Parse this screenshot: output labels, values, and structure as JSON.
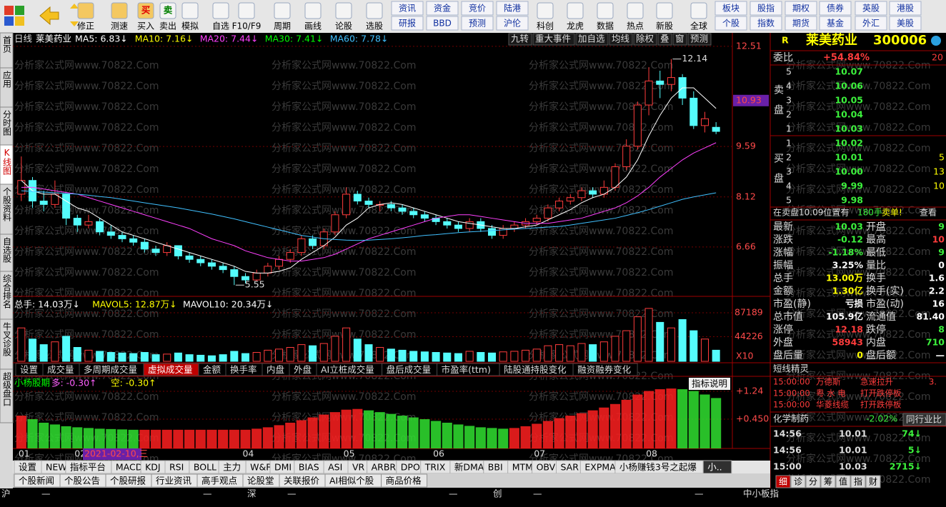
{
  "toolbar": {
    "singles": [
      "修正",
      "测速",
      "买入",
      "卖出",
      "模拟",
      "自选",
      "F10/F9",
      "周期",
      "画线",
      "论股",
      "选股",
      "科创",
      "龙虎",
      "数据",
      "热点",
      "新股",
      "全球"
    ],
    "pairs": [
      [
        "资讯",
        "研报"
      ],
      [
        "资金",
        "BBD"
      ],
      [
        "竞价",
        "预测"
      ],
      [
        "陆港",
        "沪伦"
      ],
      [
        "板块",
        "个股"
      ],
      [
        "股指",
        "指数"
      ],
      [
        "期权",
        "期货"
      ],
      [
        "债券",
        "基金"
      ],
      [
        "英股",
        "外汇"
      ],
      [
        "港股",
        "美股"
      ]
    ],
    "icon_glyphs": [
      "买",
      "卖"
    ]
  },
  "left_tabs": [
    "首页",
    "应用",
    "分时图",
    "K线图",
    "个股资料",
    "自选股",
    "综合排名",
    "牛叉诊股",
    "超级盘口"
  ],
  "watermark": "分析家公式网www.70822.Com",
  "chart_header": {
    "period": "日线",
    "name": "莱美药业",
    "mas": [
      "MA5: 6.83↓",
      "MA10: 7.16↓",
      "MA20: 7.44↓",
      "MA30: 7.41↓",
      "MA60: 7.78↓"
    ],
    "ma_colors": [
      "#ffffff",
      "#ffff00",
      "#ff40ff",
      "#00ff00",
      "#40c0ff"
    ]
  },
  "chart_buttons": [
    "九转",
    "重大事件",
    "加自选",
    "均线",
    "除权",
    "叠",
    "窗",
    "预测"
  ],
  "chart_data": {
    "type": "candlestick",
    "categories": [
      "01",
      null,
      null,
      null,
      null,
      "02",
      null,
      null,
      null,
      null,
      null,
      null,
      null,
      null,
      null,
      null,
      null,
      null,
      null,
      null,
      "04",
      null,
      null,
      null,
      null,
      null,
      null,
      null,
      null,
      "05",
      null,
      null,
      null,
      null,
      null,
      null,
      null,
      "06",
      null,
      null,
      null,
      null,
      null,
      null,
      null,
      null,
      "07",
      null,
      null,
      null,
      null,
      null,
      null,
      null,
      null,
      null,
      "08",
      null,
      null,
      null,
      null,
      null,
      null
    ],
    "candles": [
      [
        8.2,
        9.3,
        8.0,
        8.6
      ],
      [
        8.6,
        8.7,
        7.8,
        8.0
      ],
      [
        8.0,
        8.3,
        7.7,
        7.9
      ],
      [
        7.9,
        8.6,
        7.8,
        8.2
      ],
      [
        8.2,
        8.2,
        7.3,
        7.5
      ],
      [
        7.5,
        7.6,
        7.1,
        7.3
      ],
      [
        7.3,
        7.6,
        7.2,
        7.4
      ],
      [
        7.4,
        7.5,
        7.0,
        7.1
      ],
      [
        7.1,
        7.3,
        6.9,
        7.0
      ],
      [
        7.0,
        7.1,
        6.8,
        6.9
      ],
      [
        6.9,
        7.0,
        6.7,
        6.8
      ],
      [
        6.8,
        6.9,
        6.5,
        6.6
      ],
      [
        6.6,
        6.7,
        6.4,
        6.5
      ],
      [
        6.5,
        6.8,
        6.4,
        6.7
      ],
      [
        6.7,
        6.7,
        6.3,
        6.4
      ],
      [
        6.4,
        6.5,
        6.2,
        6.3
      ],
      [
        6.3,
        6.4,
        6.1,
        6.2
      ],
      [
        6.2,
        6.3,
        6.0,
        6.1
      ],
      [
        6.1,
        6.2,
        5.9,
        6.0
      ],
      [
        6.0,
        6.1,
        5.55,
        5.8
      ],
      [
        5.8,
        5.9,
        5.6,
        5.7
      ],
      [
        5.7,
        6.0,
        5.65,
        5.9
      ],
      [
        5.9,
        6.2,
        5.8,
        6.1
      ],
      [
        6.1,
        6.4,
        6.0,
        6.3
      ],
      [
        6.3,
        6.6,
        6.2,
        6.5
      ],
      [
        6.5,
        7.0,
        6.4,
        6.9
      ],
      [
        6.9,
        7.0,
        6.6,
        6.7
      ],
      [
        6.7,
        7.2,
        6.6,
        7.1
      ],
      [
        7.1,
        7.7,
        7.0,
        7.6
      ],
      [
        7.6,
        8.4,
        7.5,
        8.2
      ],
      [
        8.2,
        8.3,
        7.9,
        8.0
      ],
      [
        8.0,
        8.1,
        7.8,
        7.9
      ],
      [
        7.9,
        8.0,
        7.7,
        7.9
      ],
      [
        7.9,
        8.0,
        7.7,
        7.8
      ],
      [
        7.8,
        7.9,
        7.6,
        7.7
      ],
      [
        7.7,
        7.8,
        7.5,
        7.6
      ],
      [
        7.6,
        7.7,
        7.4,
        7.5
      ],
      [
        7.5,
        7.6,
        7.3,
        7.4
      ],
      [
        7.4,
        7.5,
        7.2,
        7.3
      ],
      [
        7.3,
        7.4,
        7.1,
        7.2
      ],
      [
        7.2,
        7.5,
        7.1,
        7.4
      ],
      [
        7.4,
        7.5,
        7.1,
        7.2
      ],
      [
        7.2,
        7.3,
        6.9,
        7.0
      ],
      [
        7.0,
        7.3,
        6.9,
        7.2
      ],
      [
        7.2,
        7.4,
        7.1,
        7.3
      ],
      [
        7.3,
        7.5,
        7.2,
        7.4
      ],
      [
        7.4,
        7.6,
        7.3,
        7.5
      ],
      [
        7.5,
        7.9,
        7.4,
        7.8
      ],
      [
        7.8,
        8.1,
        7.7,
        8.0
      ],
      [
        8.0,
        8.2,
        7.9,
        8.1
      ],
      [
        8.1,
        8.4,
        8.0,
        8.3
      ],
      [
        8.3,
        8.4,
        8.1,
        8.2
      ],
      [
        8.2,
        8.6,
        8.1,
        8.4
      ],
      [
        8.4,
        9.1,
        8.3,
        9.0
      ],
      [
        9.0,
        9.8,
        8.9,
        9.6
      ],
      [
        9.6,
        10.9,
        9.5,
        10.8
      ],
      [
        10.8,
        11.9,
        10.5,
        11.5
      ],
      [
        11.5,
        11.8,
        11.0,
        11.4
      ],
      [
        11.4,
        12.14,
        11.2,
        11.6
      ],
      [
        11.6,
        11.7,
        10.8,
        11.0
      ],
      [
        11.0,
        11.2,
        10.1,
        10.2
      ],
      [
        10.2,
        10.6,
        10.0,
        10.4
      ],
      [
        10.15,
        10.3,
        9.95,
        10.03
      ]
    ],
    "series": [
      {
        "color": "#ffffff",
        "values": [
          8.6,
          8.3,
          8.2,
          8.2,
          8.0,
          7.8,
          7.7,
          7.5,
          7.3,
          7.1,
          7.0,
          6.9,
          6.8,
          6.7,
          6.6,
          6.5,
          6.4,
          6.3,
          6.2,
          6.1,
          5.95,
          5.9,
          5.9,
          5.95,
          6.05,
          6.3,
          6.5,
          6.7,
          6.95,
          7.3,
          7.5,
          7.8,
          7.9,
          7.95,
          7.9,
          7.8,
          7.7,
          7.6,
          7.5,
          7.4,
          7.35,
          7.3,
          7.25,
          7.2,
          7.2,
          7.25,
          7.3,
          7.45,
          7.6,
          7.75,
          7.95,
          8.1,
          8.2,
          8.4,
          8.7,
          9.2,
          9.9,
          10.5,
          11.0,
          11.3,
          11.3,
          11.0,
          10.7
        ]
      },
      {
        "color": "#ff40ff",
        "values": [
          8.4,
          8.4,
          8.35,
          8.3,
          8.25,
          8.2,
          8.1,
          8.0,
          7.9,
          7.8,
          7.7,
          7.6,
          7.5,
          7.4,
          7.3,
          7.2,
          7.05,
          6.9,
          6.8,
          6.7,
          6.55,
          6.45,
          6.35,
          6.3,
          6.25,
          6.25,
          6.3,
          6.35,
          6.45,
          6.6,
          6.75,
          6.9,
          7.0,
          7.1,
          7.2,
          7.3,
          7.4,
          7.5,
          7.55,
          7.6,
          7.6,
          7.55,
          7.5,
          7.45,
          7.4,
          7.35,
          7.35,
          7.35,
          7.4,
          7.45,
          7.5,
          7.6,
          7.7,
          7.8,
          7.95,
          8.15,
          8.4,
          8.7,
          8.95,
          9.2,
          9.4,
          9.55,
          9.7
        ]
      },
      {
        "color": "#40c0ff",
        "values": [
          8.3,
          8.28,
          8.26,
          8.24,
          8.22,
          8.2,
          8.17,
          8.13,
          8.1,
          8.05,
          8.0,
          7.95,
          7.9,
          7.85,
          7.8,
          7.74,
          7.68,
          7.62,
          7.55,
          7.48,
          7.4,
          7.32,
          7.24,
          7.16,
          7.08,
          7.0,
          6.95,
          6.9,
          6.88,
          6.86,
          6.85,
          6.86,
          6.88,
          6.9,
          6.93,
          6.96,
          7.0,
          7.02,
          7.05,
          7.08,
          7.1,
          7.12,
          7.14,
          7.16,
          7.18,
          7.2,
          7.22,
          7.24,
          7.26,
          7.3,
          7.35,
          7.4,
          7.45,
          7.5,
          7.58,
          7.66,
          7.75,
          7.85,
          7.95,
          8.05,
          8.12,
          8.18,
          8.24
        ]
      }
    ],
    "ylim": [
      5.43,
      12.82
    ],
    "yticks": [
      6.66,
      8.12,
      9.59,
      12.51
    ],
    "grid": true,
    "cursor_price": 10.93,
    "high_label": 12.14,
    "low_label": 5.55,
    "date_label": "2021-02-10,三",
    "up_color": "#ff3c3c",
    "down_color": "#54fcfc"
  },
  "volume": {
    "header": [
      "总手: 14.03万↓",
      "MAVOL5: 12.87万↓",
      "MAVOL10: 20.34万↓"
    ],
    "header_colors": [
      "#ffffff",
      "#ffff00",
      "#ffffff"
    ],
    "values": [
      60000,
      40000,
      30000,
      35000,
      45000,
      25000,
      20000,
      18000,
      16000,
      15000,
      14000,
      16000,
      12000,
      13000,
      15000,
      12000,
      11000,
      10000,
      12000,
      18000,
      14000,
      16000,
      20000,
      22000,
      25000,
      30000,
      28000,
      32000,
      45000,
      60000,
      40000,
      30000,
      25000,
      22000,
      20000,
      18000,
      17000,
      16000,
      15000,
      14000,
      18000,
      16000,
      15000,
      17000,
      18000,
      20000,
      22000,
      28000,
      30000,
      28000,
      32000,
      30000,
      35000,
      45000,
      55000,
      80000,
      95000,
      70000,
      60000,
      75000,
      55000,
      40000,
      20000
    ],
    "ylim": [
      0,
      110268
    ],
    "yticks": [
      44226,
      87189
    ],
    "unit_label": "X10"
  },
  "volume_tabs": [
    "设置",
    "成交量",
    "多周期成交量",
    "虚拟成交量",
    "金额",
    "换手率",
    "内盘",
    "外盘",
    "AI立桩成交量",
    "盘后成交量",
    "市盈率(ttm)",
    "陆股通持股变化",
    "融资融券变化"
  ],
  "indicator": {
    "name": "小杨股期",
    "header": [
      "多: -0.30↑",
      "空: -0.30↑"
    ],
    "header_colors": [
      "#ff60ff",
      "#ffff00"
    ],
    "help": "指标说明",
    "values": [
      0.55,
      0.45,
      0.35,
      0.3,
      0.25,
      0.22,
      0.2,
      0.18,
      0.17,
      0.16,
      0.15,
      0.15,
      0.15,
      0.15,
      0.15,
      0.15,
      0.15,
      0.15,
      0.15,
      0.15,
      0.15,
      0.18,
      0.22,
      0.28,
      0.35,
      0.42,
      0.5,
      0.58,
      0.65,
      0.72,
      0.74,
      0.7,
      0.65,
      0.6,
      0.55,
      0.5,
      0.45,
      0.4,
      0.35,
      0.3,
      0.26,
      0.22,
      0.2,
      0.18,
      0.2,
      0.25,
      0.32,
      0.4,
      0.48,
      0.55,
      0.62,
      0.7,
      0.78,
      0.88,
      1.0,
      1.15,
      1.25,
      1.3,
      1.32,
      1.3,
      1.25,
      1.15,
      1.05
    ],
    "ylim": [
      -0.38,
      1.605
    ],
    "yticks": [
      {
        "value": 0.45,
        "label": "+0.450"
      },
      {
        "value": 1.24,
        "label": "+1.24"
      }
    ]
  },
  "indicator_tabs": [
    "设置",
    "NEW",
    "指标平台",
    "MACD",
    "KDJ",
    "RSI",
    "BOLL",
    "主力",
    "W&R",
    "DMI",
    "BIAS",
    "ASI",
    "VR",
    "ARBR",
    "DPO",
    "TRIX",
    "新DMA",
    "BBI",
    "MTM",
    "OBV",
    "SAR",
    "EXPMA",
    "小杨赚钱3号之起爆",
    "小.."
  ],
  "news_tabs": [
    "个股新闻",
    "个股公告",
    "个股研报",
    "行业资讯",
    "高手观点",
    "论股堂",
    "关联报价",
    "AI相似个股",
    "商品价格"
  ],
  "status_bar": {
    "markets": [
      "沪",
      "深",
      "创"
    ],
    "dash": "—",
    "index": "中小板指"
  },
  "quote": {
    "flag": "R",
    "name": "莱美药业",
    "code": "300006",
    "weibi": [
      "委比",
      "+54.84%",
      "20"
    ],
    "sell_label": "卖盘",
    "buy_label": "买盘",
    "asks": [
      [
        "5",
        "10.07"
      ],
      [
        "4",
        "10.06"
      ],
      [
        "3",
        "10.05"
      ],
      [
        "2",
        "10.04"
      ],
      [
        "1",
        "10.03"
      ]
    ],
    "bids": [
      [
        "1",
        "10.02"
      ],
      [
        "2",
        "10.01",
        "5"
      ],
      [
        "3",
        "10.00",
        "13"
      ],
      [
        "4",
        "9.99",
        "10"
      ],
      [
        "5",
        "9.98"
      ]
    ],
    "notice": [
      "在卖盘10.09位置有",
      "180手",
      "卖单!",
      "查看"
    ],
    "stats": [
      [
        "最新",
        "10.03",
        "开盘",
        "9"
      ],
      [
        "涨跌",
        "-0.12",
        "最高",
        "10"
      ],
      [
        "涨幅",
        "-1.18%",
        "最低",
        "9"
      ],
      [
        "振幅",
        "3.25%",
        "量比",
        "0"
      ],
      [
        "总手",
        "13.00万",
        "换手",
        "1.6"
      ],
      [
        "金额",
        "1.30亿",
        "换手(实)",
        "2.2"
      ],
      [
        "市盈(静)",
        "亏损",
        "市盈(动)",
        "16"
      ],
      [
        "总市值",
        "105.9亿",
        "流通值",
        "81.40"
      ],
      [
        "涨停",
        "12.18",
        "跌停",
        "8"
      ],
      [
        "外盘",
        "58943",
        "内盘",
        "710"
      ],
      [
        "盘后量",
        "0",
        "盘后额",
        "—"
      ]
    ],
    "stat_colors": [
      [
        "#3cf03c",
        "#3cf03c"
      ],
      [
        "#3cf03c",
        "#ff3c3c"
      ],
      [
        "#3cf03c",
        "#3cf03c"
      ],
      [
        "#ffffff",
        "#ffffff"
      ],
      [
        "#ffff00",
        "#ffffff"
      ],
      [
        "#ffff00",
        "#ffffff"
      ],
      [
        "#ffffff",
        "#ffffff"
      ],
      [
        "#ffffff",
        "#ffffff"
      ],
      [
        "#ff3c3c",
        "#3cf03c"
      ],
      [
        "#ff3c3c",
        "#3cf03c"
      ],
      [
        "#ffff00",
        "#ffffff"
      ]
    ],
    "elf_title": "短线精灵",
    "elf": [
      [
        "15:00:00",
        "万德斯",
        "急速拉升",
        "3."
      ],
      [
        "15:00:00",
        "粤 水 电",
        "打开跌停板"
      ],
      [
        "15:00:00",
        "华菱线缆",
        "打开跌停板"
      ]
    ],
    "industry": [
      "化学制药",
      "-2.02%",
      "同行业比"
    ],
    "ticks": [
      [
        "14:56",
        "10.01",
        "74↓"
      ],
      [
        "14:56",
        "10.01",
        "5↓"
      ],
      [
        "15:00",
        "10.03",
        "2715↓"
      ]
    ],
    "bottom_tabs": [
      "细",
      "诊",
      "分",
      "筹",
      "值",
      "指",
      "财"
    ]
  }
}
